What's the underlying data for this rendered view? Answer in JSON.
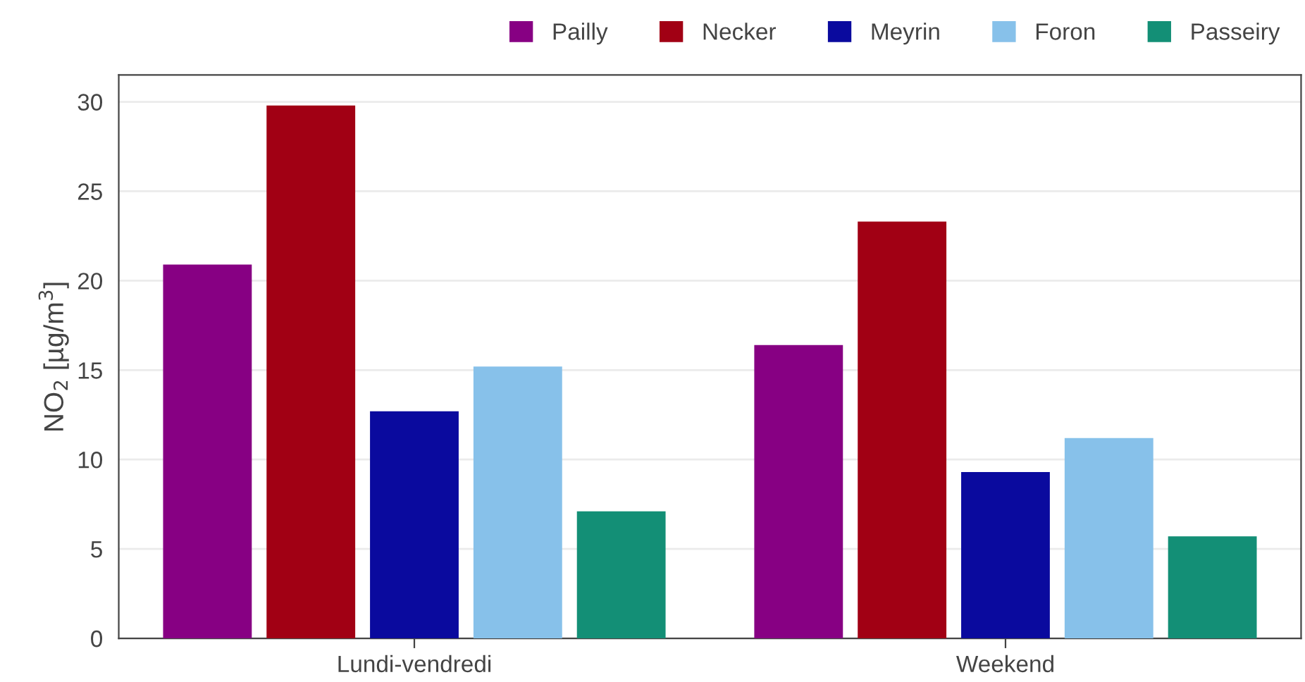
{
  "chart_data": {
    "type": "bar",
    "ylabel": "NO$_{2}$ [µg/m$^{3}$]",
    "categories": [
      "Lundi-vendredi",
      "Weekend"
    ],
    "series": [
      {
        "name": "Pailly",
        "color": "#870083",
        "values": [
          20.9,
          16.4
        ]
      },
      {
        "name": "Necker",
        "color": "#a10014",
        "values": [
          29.8,
          23.3
        ]
      },
      {
        "name": "Meyrin",
        "color": "#0a0a9e",
        "values": [
          12.7,
          9.3
        ]
      },
      {
        "name": "Foron",
        "color": "#87c1ea",
        "values": [
          15.2,
          11.2
        ]
      },
      {
        "name": "Passeiry",
        "color": "#138f76",
        "values": [
          7.1,
          5.7
        ]
      }
    ],
    "ylim": [
      0,
      31.5
    ],
    "yticks": [
      0,
      5,
      10,
      15,
      20,
      25,
      30
    ],
    "grid": "y",
    "legend": "top right"
  }
}
